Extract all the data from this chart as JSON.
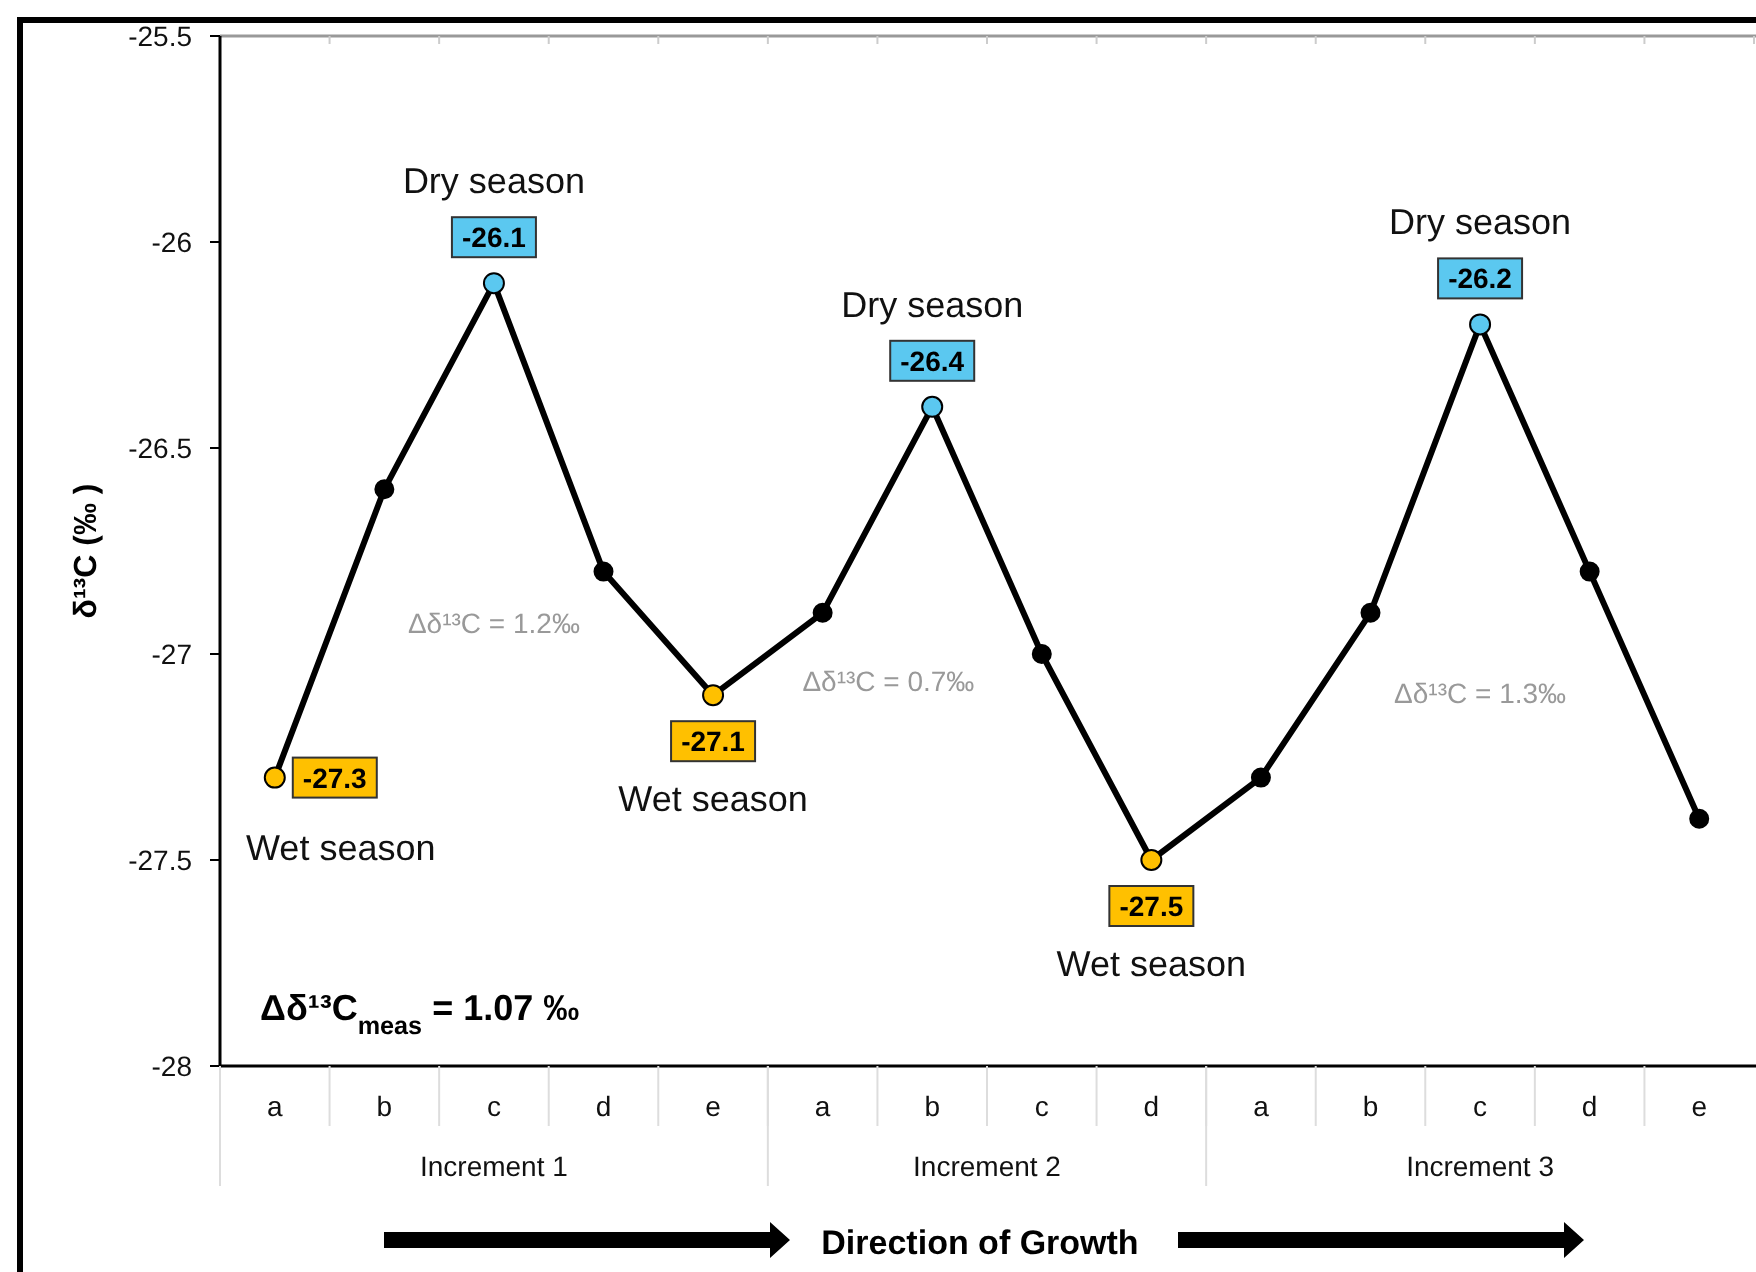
{
  "chart_data": {
    "type": "line",
    "ylabel": "δ¹³C (‰ )",
    "categories": [
      "a",
      "b",
      "c",
      "d",
      "e",
      "a",
      "b",
      "c",
      "d",
      "a",
      "b",
      "c",
      "d",
      "e"
    ],
    "series": [
      {
        "color": "#000000",
        "colors": [
          "#ffc000",
          "#000000",
          "#5bc8f0",
          "#000000",
          "#ffc000",
          "#000000",
          "#5bc8f0",
          "#000000",
          "#ffc000",
          "#000000",
          "#000000",
          "#5bc8f0",
          "#000000",
          "#000000"
        ],
        "values": [
          -27.3,
          -26.6,
          -26.1,
          -26.8,
          -27.1,
          -26.9,
          -26.4,
          -27.0,
          -27.5,
          -27.3,
          -26.9,
          -26.2,
          -26.8,
          -27.4
        ],
        "value_labels": [
          "-27.3",
          null,
          "-26.1",
          null,
          "-27.1",
          null,
          "-26.4",
          null,
          "-27.5",
          null,
          null,
          "-26.2",
          null,
          null
        ]
      }
    ],
    "ylim": [
      -28,
      -25.5
    ],
    "yticks": [
      -28,
      -27.5,
      -27,
      -26.5,
      -26,
      -25.5
    ],
    "grid": false,
    "marker": "circle",
    "line_style": "solid",
    "annotations": [
      "Wet season",
      "Dry season",
      "Wet season",
      "Dry season",
      "Wet season",
      "Dry season",
      {
        "text": "Increment 1"
      },
      {
        "text": "Increment 2"
      },
      {
        "text": "Increment 3"
      },
      "Δδ¹³C = 1.2‰",
      "Δδ¹³C = 0.7‰",
      "Δδ¹³C = 1.3‰",
      "Δδ¹³C$_{meas}$ = 1.07 ‰",
      "Direction of Growth"
    ]
  }
}
